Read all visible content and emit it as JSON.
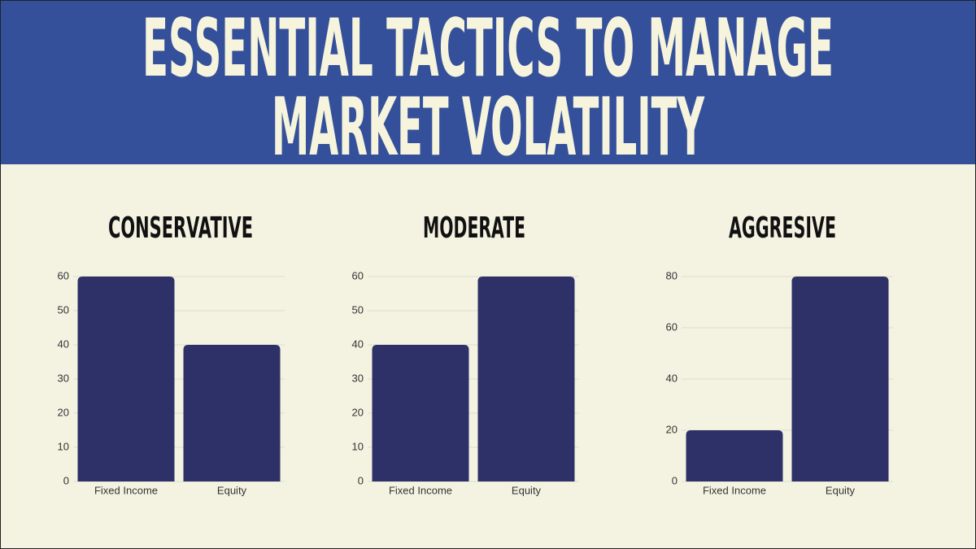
{
  "header": {
    "title_lines": [
      "ESSENTIAL TACTICS TO MANAGE",
      "MARKET VOLATILITY"
    ]
  },
  "chart_data": [
    {
      "type": "bar",
      "title": "CONSERVATIVE",
      "categories": [
        "Fixed Income",
        "Equity"
      ],
      "values": [
        60,
        40
      ],
      "color": "#2e3168",
      "ylim": [
        0,
        60
      ],
      "yticks": [
        0,
        10,
        20,
        30,
        40,
        50,
        60
      ],
      "grid": true
    },
    {
      "type": "bar",
      "title": "MODERATE",
      "categories": [
        "Fixed Income",
        "Equity"
      ],
      "values": [
        40,
        60
      ],
      "color": "#2e3168",
      "ylim": [
        0,
        60
      ],
      "yticks": [
        0,
        10,
        20,
        30,
        40,
        50,
        60
      ],
      "grid": true
    },
    {
      "type": "bar",
      "title": "AGGRESIVE",
      "categories": [
        "Fixed Income",
        "Equity"
      ],
      "values": [
        20,
        80
      ],
      "color": "#2e3168",
      "ylim": [
        0,
        80
      ],
      "yticks": [
        0,
        20,
        40,
        60,
        80
      ],
      "grid": true
    }
  ]
}
